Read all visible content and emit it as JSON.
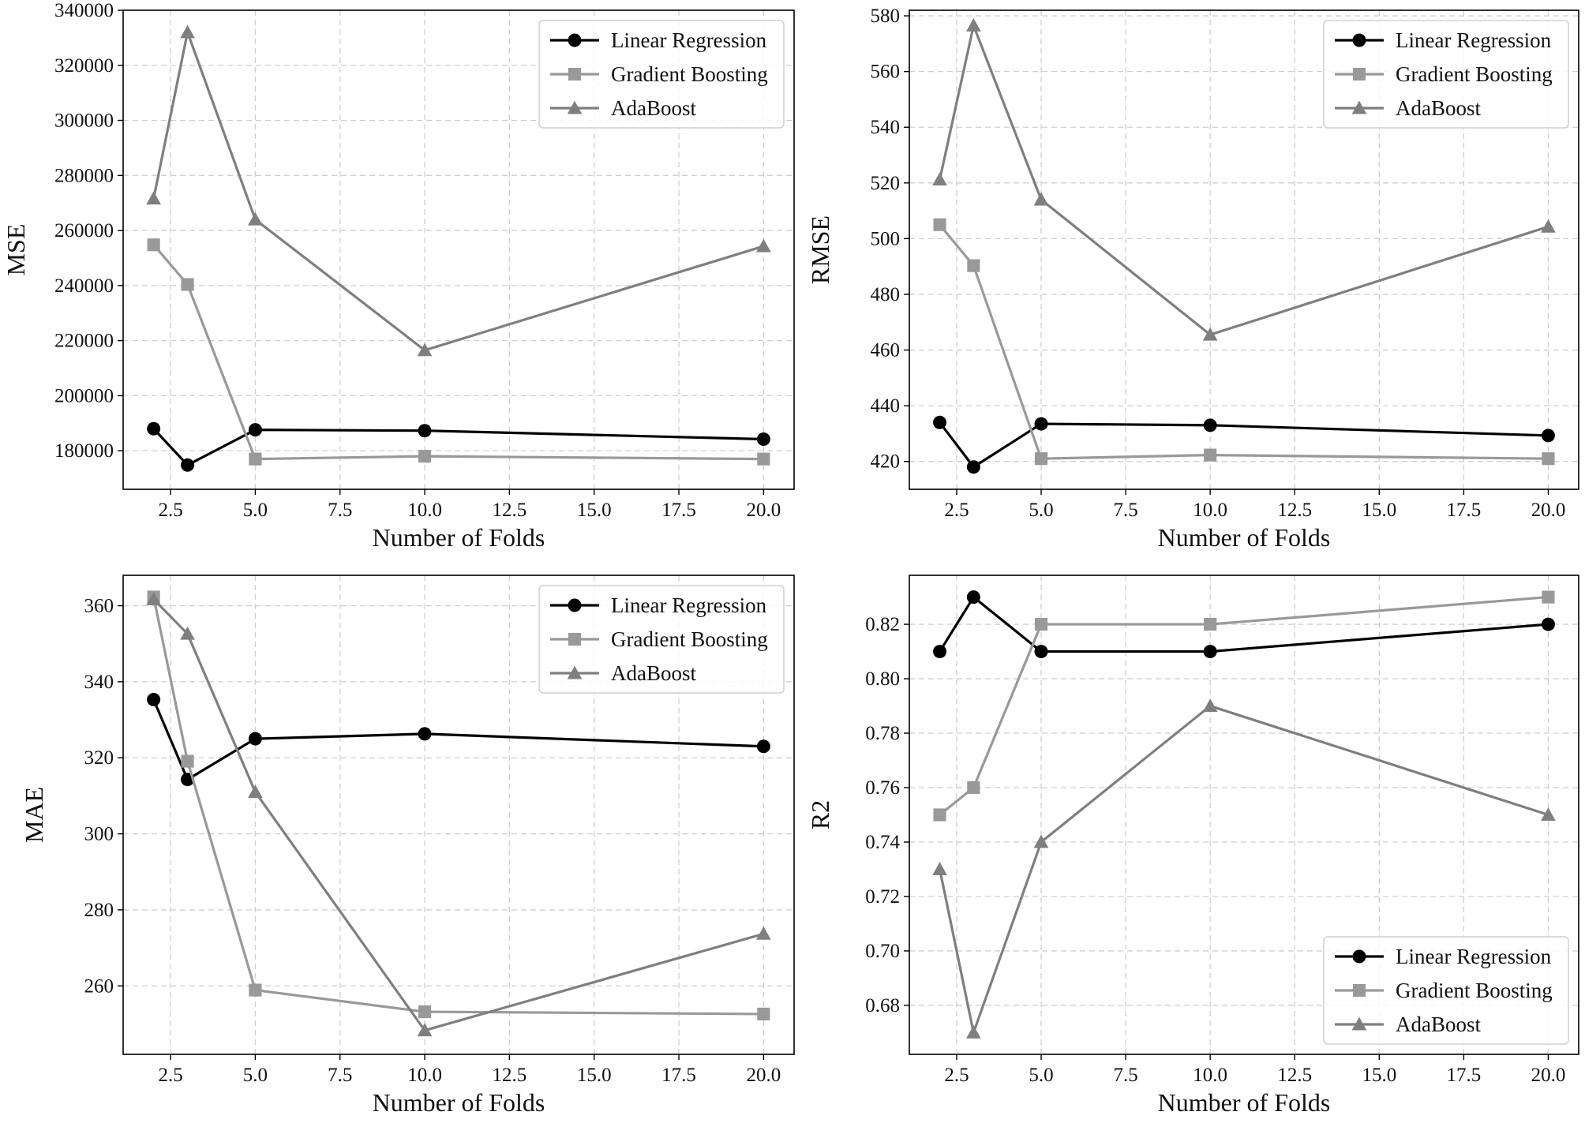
{
  "chart_data": [
    {
      "type": "line",
      "title": "",
      "xlabel": "Number of Folds",
      "ylabel": "MSE",
      "x": [
        2,
        3,
        5,
        10,
        20
      ],
      "xlim": [
        1.1,
        20.9
      ],
      "ylim": [
        166000,
        340000
      ],
      "xticks": [
        2.5,
        5.0,
        7.5,
        10.0,
        12.5,
        15.0,
        17.5,
        20.0
      ],
      "xtick_labels": [
        "2.5",
        "5.0",
        "7.5",
        "10.0",
        "12.5",
        "15.0",
        "17.5",
        "20.0"
      ],
      "yticks": [
        180000,
        200000,
        220000,
        240000,
        260000,
        280000,
        300000,
        320000,
        340000
      ],
      "ytick_labels": [
        "180000",
        "200000",
        "220000",
        "240000",
        "260000",
        "280000",
        "300000",
        "320000",
        "340000"
      ],
      "grid": true,
      "legend_position": "top-right",
      "series": [
        {
          "name": "Linear Regression",
          "values": [
            188000,
            174800,
            187600,
            187300,
            184200
          ]
        },
        {
          "name": "Gradient Boosting",
          "values": [
            254800,
            240400,
            177000,
            178000,
            177000
          ]
        },
        {
          "name": "AdaBoost",
          "values": [
            271600,
            332000,
            264000,
            216500,
            254300
          ]
        }
      ]
    },
    {
      "type": "line",
      "title": "",
      "xlabel": "Number of Folds",
      "ylabel": "RMSE",
      "x": [
        2,
        3,
        5,
        10,
        20
      ],
      "xlim": [
        1.1,
        20.9
      ],
      "ylim": [
        410,
        582
      ],
      "xticks": [
        2.5,
        5.0,
        7.5,
        10.0,
        12.5,
        15.0,
        17.5,
        20.0
      ],
      "xtick_labels": [
        "2.5",
        "5.0",
        "7.5",
        "10.0",
        "12.5",
        "15.0",
        "17.5",
        "20.0"
      ],
      "yticks": [
        420,
        440,
        460,
        480,
        500,
        520,
        540,
        560,
        580
      ],
      "ytick_labels": [
        "420",
        "440",
        "460",
        "480",
        "500",
        "520",
        "540",
        "560",
        "580"
      ],
      "grid": true,
      "legend_position": "top-right",
      "series": [
        {
          "name": "Linear Regression",
          "values": [
            434,
            418,
            433.5,
            433,
            429.3
          ]
        },
        {
          "name": "Gradient Boosting",
          "values": [
            505,
            490.3,
            421,
            422.3,
            421
          ]
        },
        {
          "name": "AdaBoost",
          "values": [
            521.2,
            576.5,
            514,
            465.5,
            504.3
          ]
        }
      ]
    },
    {
      "type": "line",
      "title": "",
      "xlabel": "Number of Folds",
      "ylabel": "MAE",
      "x": [
        2,
        3,
        5,
        10,
        20
      ],
      "xlim": [
        1.1,
        20.9
      ],
      "ylim": [
        242,
        368
      ],
      "xticks": [
        2.5,
        5.0,
        7.5,
        10.0,
        12.5,
        15.0,
        17.5,
        20.0
      ],
      "xtick_labels": [
        "2.5",
        "5.0",
        "7.5",
        "10.0",
        "12.5",
        "15.0",
        "17.5",
        "20.0"
      ],
      "yticks": [
        260,
        280,
        300,
        320,
        340,
        360
      ],
      "ytick_labels": [
        "260",
        "280",
        "300",
        "320",
        "340",
        "360"
      ],
      "grid": true,
      "legend_position": "top-right",
      "series": [
        {
          "name": "Linear Regression",
          "values": [
            335.3,
            314.3,
            325,
            326.3,
            323
          ]
        },
        {
          "name": "Gradient Boosting",
          "values": [
            362.3,
            319.1,
            258.9,
            253.2,
            252.6
          ]
        },
        {
          "name": "AdaBoost",
          "values": [
            361.7,
            352.6,
            311,
            248.3,
            273.7
          ]
        }
      ]
    },
    {
      "type": "line",
      "title": "",
      "xlabel": "Number of Folds",
      "ylabel": "R2",
      "x": [
        2,
        3,
        5,
        10,
        20
      ],
      "xlim": [
        1.1,
        20.9
      ],
      "ylim": [
        0.662,
        0.838
      ],
      "xticks": [
        2.5,
        5.0,
        7.5,
        10.0,
        12.5,
        15.0,
        17.5,
        20.0
      ],
      "xtick_labels": [
        "2.5",
        "5.0",
        "7.5",
        "10.0",
        "12.5",
        "15.0",
        "17.5",
        "20.0"
      ],
      "yticks": [
        0.68,
        0.7,
        0.72,
        0.74,
        0.76,
        0.78,
        0.8,
        0.82
      ],
      "ytick_labels": [
        "0.68",
        "0.70",
        "0.72",
        "0.74",
        "0.76",
        "0.78",
        "0.80",
        "0.82"
      ],
      "grid": true,
      "legend_position": "bottom-right",
      "series": [
        {
          "name": "Linear Regression",
          "values": [
            0.81,
            0.83,
            0.81,
            0.81,
            0.82
          ]
        },
        {
          "name": "Gradient Boosting",
          "values": [
            0.75,
            0.76,
            0.82,
            0.82,
            0.83
          ]
        },
        {
          "name": "AdaBoost",
          "values": [
            0.73,
            0.67,
            0.74,
            0.79,
            0.75
          ]
        }
      ]
    }
  ],
  "series_styles": [
    {
      "name": "Linear Regression",
      "color": "#000000",
      "marker": "circle"
    },
    {
      "name": "Gradient Boosting",
      "color": "#999999",
      "marker": "square"
    },
    {
      "name": "AdaBoost",
      "color": "#7f7f7f",
      "marker": "triangle"
    }
  ]
}
